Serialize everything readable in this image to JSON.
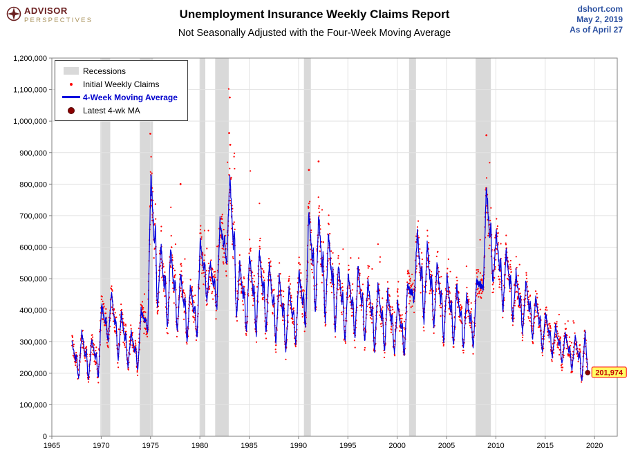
{
  "header": {
    "logo": {
      "line1": "ADVISOR",
      "line2": "PERSPECTIVES"
    },
    "title": "Unemployment Insurance Weekly Claims Report",
    "subtitle": "Not Seasonally Adjusted with the Four-Week Moving Average",
    "source_site": "dshort.com",
    "source_date": "May 2, 2019",
    "source_asof": "As of April 27"
  },
  "legend": {
    "items": [
      {
        "label": "Recessions"
      },
      {
        "label": "Initial Weekly Claims"
      },
      {
        "label": "4-Week Moving Average"
      },
      {
        "label": "Latest 4-wk MA"
      }
    ]
  },
  "chart_data": {
    "type": "line+scatter",
    "title": "Unemployment Insurance Weekly Claims Report",
    "subtitle": "Not Seasonally Adjusted with the Four-Week Moving Average",
    "units": "initial claims per week",
    "x_range": [
      1965,
      2022.3
    ],
    "y_range": [
      0,
      1200000
    ],
    "x_ticks": [
      {
        "value": 1965,
        "label": "1965"
      },
      {
        "value": 1970,
        "label": "1970"
      },
      {
        "value": 1975,
        "label": "1975"
      },
      {
        "value": 1980,
        "label": "1980"
      },
      {
        "value": 1985,
        "label": "1985"
      },
      {
        "value": 1990,
        "label": "1990"
      },
      {
        "value": 1995,
        "label": "1995"
      },
      {
        "value": 2000,
        "label": "2000"
      },
      {
        "value": 2005,
        "label": "2005"
      },
      {
        "value": 2010,
        "label": "2010"
      },
      {
        "value": 2015,
        "label": "2015"
      },
      {
        "value": 2020,
        "label": "2020"
      }
    ],
    "y_ticks": [
      {
        "value": 0,
        "label": "0"
      },
      {
        "value": 100000,
        "label": "100,000"
      },
      {
        "value": 200000,
        "label": "200,000"
      },
      {
        "value": 300000,
        "label": "300,000"
      },
      {
        "value": 400000,
        "label": "400,000"
      },
      {
        "value": 500000,
        "label": "500,000"
      },
      {
        "value": 600000,
        "label": "600,000"
      },
      {
        "value": 700000,
        "label": "700,000"
      },
      {
        "value": 800000,
        "label": "800,000"
      },
      {
        "value": 900000,
        "label": "900,000"
      },
      {
        "value": 1000000,
        "label": "1,000,000"
      },
      {
        "value": 1100000,
        "label": "1,100,000"
      },
      {
        "value": 1200000,
        "label": "1,200,000"
      }
    ],
    "colors": {
      "recession": "#D9D9D9",
      "grid": "#E2E2E2",
      "border": "#7F7F7F",
      "claims": "#FF0000",
      "ma": "#0000DD",
      "latest": "#8B0000",
      "callout_bg": "#FFFF66",
      "callout_border": "#FF0000",
      "callout_text": "#C00000"
    },
    "recessions": [
      [
        1969.92,
        1970.92
      ],
      [
        1973.92,
        1975.25
      ],
      [
        1980.0,
        1980.55
      ],
      [
        1981.55,
        1982.92
      ],
      [
        1990.55,
        1991.25
      ],
      [
        2001.2,
        2001.9
      ],
      [
        2007.95,
        2009.5
      ]
    ],
    "envelope_format": "[year, january_peak_of_4wk_MA, autumn_trough_of_4wk_MA] (values estimated from gridlines)",
    "envelope": [
      [
        1967,
        300000,
        185000
      ],
      [
        1968,
        330000,
        180000
      ],
      [
        1969,
        310000,
        185000
      ],
      [
        1970,
        420000,
        300000
      ],
      [
        1971,
        460000,
        240000
      ],
      [
        1972,
        390000,
        220000
      ],
      [
        1973,
        330000,
        210000
      ],
      [
        1974,
        400000,
        330000
      ],
      [
        1975,
        830000,
        400000
      ],
      [
        1976,
        610000,
        340000
      ],
      [
        1977,
        600000,
        330000
      ],
      [
        1978,
        520000,
        300000
      ],
      [
        1979,
        480000,
        310000
      ],
      [
        1980,
        620000,
        430000
      ],
      [
        1981,
        550000,
        400000
      ],
      [
        1982,
        680000,
        540000
      ],
      [
        1983,
        830000,
        380000
      ],
      [
        1984,
        550000,
        330000
      ],
      [
        1985,
        580000,
        320000
      ],
      [
        1986,
        590000,
        330000
      ],
      [
        1987,
        550000,
        290000
      ],
      [
        1988,
        510000,
        270000
      ],
      [
        1989,
        470000,
        290000
      ],
      [
        1990,
        520000,
        340000
      ],
      [
        1991,
        720000,
        390000
      ],
      [
        1992,
        710000,
        360000
      ],
      [
        1993,
        650000,
        330000
      ],
      [
        1994,
        550000,
        300000
      ],
      [
        1995,
        520000,
        310000
      ],
      [
        1996,
        540000,
        300000
      ],
      [
        1997,
        500000,
        270000
      ],
      [
        1998,
        480000,
        270000
      ],
      [
        1999,
        460000,
        260000
      ],
      [
        2000,
        430000,
        250000
      ],
      [
        2001,
        480000,
        430000
      ],
      [
        2002,
        650000,
        360000
      ],
      [
        2003,
        610000,
        340000
      ],
      [
        2004,
        560000,
        300000
      ],
      [
        2005,
        510000,
        290000
      ],
      [
        2006,
        480000,
        280000
      ],
      [
        2007,
        450000,
        280000
      ],
      [
        2008,
        490000,
        470000
      ],
      [
        2009,
        790000,
        480000
      ],
      [
        2010,
        650000,
        400000
      ],
      [
        2011,
        590000,
        370000
      ],
      [
        2012,
        520000,
        330000
      ],
      [
        2013,
        490000,
        310000
      ],
      [
        2014,
        440000,
        270000
      ],
      [
        2015,
        390000,
        250000
      ],
      [
        2016,
        350000,
        230000
      ],
      [
        2017,
        330000,
        210000
      ],
      [
        2018,
        320000,
        175000
      ],
      [
        2019,
        330000,
        202000
      ]
    ],
    "outliers": [
      [
        1975.04,
        1005000
      ],
      [
        1974.98,
        960000
      ],
      [
        1978.04,
        800000
      ],
      [
        1983.03,
        1075000
      ],
      [
        1982.97,
        962000
      ],
      [
        1983.08,
        925000
      ],
      [
        1991.05,
        845000
      ],
      [
        1992.03,
        872000
      ],
      [
        2009.04,
        955000
      ]
    ],
    "latest": {
      "x": 2019.3,
      "value": 201974,
      "label": "201,974"
    }
  }
}
